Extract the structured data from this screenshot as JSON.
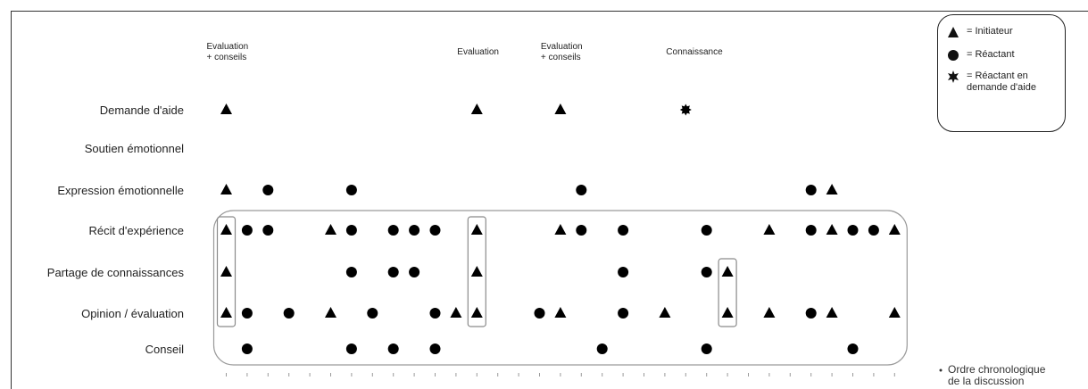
{
  "chart_data": {
    "type": "scatter",
    "x_axis": {
      "label_lines": [
        "Ordre chronologique",
        "de la discussion"
      ]
    },
    "categories": [
      "Demande d'aide",
      "Soutien émotionnel",
      "Expression émotionnelle",
      "Récit d'expérience",
      "Partage de connaissances",
      "Opinion / évaluation",
      "Conseil"
    ],
    "top_labels": [
      {
        "x": 1,
        "lines": [
          "Evaluation",
          "+ conseils"
        ]
      },
      {
        "x": 13,
        "lines": [
          "Evaluation"
        ]
      },
      {
        "x": 17,
        "lines": [
          "Evaluation",
          "+ conseils"
        ]
      },
      {
        "x": 23,
        "lines": [
          "Connaissance"
        ]
      }
    ],
    "legend": [
      {
        "symbol": "triangle",
        "label": "= Initiateur"
      },
      {
        "symbol": "circle",
        "label": "= Réactant"
      },
      {
        "symbol": "star",
        "label": "= Réactant en demande d'aide"
      }
    ],
    "points": [
      {
        "x": 1,
        "row": 0,
        "symbol": "triangle"
      },
      {
        "x": 13,
        "row": 0,
        "symbol": "triangle"
      },
      {
        "x": 17,
        "row": 0,
        "symbol": "triangle"
      },
      {
        "x": 23,
        "row": 0,
        "symbol": "star"
      },
      {
        "x": 1,
        "row": 2,
        "symbol": "triangle"
      },
      {
        "x": 3,
        "row": 2,
        "symbol": "circle"
      },
      {
        "x": 7,
        "row": 2,
        "symbol": "circle"
      },
      {
        "x": 18,
        "row": 2,
        "symbol": "circle"
      },
      {
        "x": 29,
        "row": 2,
        "symbol": "circle"
      },
      {
        "x": 30,
        "row": 2,
        "symbol": "triangle"
      },
      {
        "x": 1,
        "row": 3,
        "symbol": "triangle"
      },
      {
        "x": 2,
        "row": 3,
        "symbol": "circle"
      },
      {
        "x": 3,
        "row": 3,
        "symbol": "circle"
      },
      {
        "x": 6,
        "row": 3,
        "symbol": "triangle"
      },
      {
        "x": 7,
        "row": 3,
        "symbol": "circle"
      },
      {
        "x": 9,
        "row": 3,
        "symbol": "circle"
      },
      {
        "x": 10,
        "row": 3,
        "symbol": "circle"
      },
      {
        "x": 11,
        "row": 3,
        "symbol": "circle"
      },
      {
        "x": 13,
        "row": 3,
        "symbol": "triangle"
      },
      {
        "x": 17,
        "row": 3,
        "symbol": "triangle"
      },
      {
        "x": 18,
        "row": 3,
        "symbol": "circle"
      },
      {
        "x": 20,
        "row": 3,
        "symbol": "circle"
      },
      {
        "x": 24,
        "row": 3,
        "symbol": "circle"
      },
      {
        "x": 27,
        "row": 3,
        "symbol": "triangle"
      },
      {
        "x": 29,
        "row": 3,
        "symbol": "circle"
      },
      {
        "x": 30,
        "row": 3,
        "symbol": "triangle"
      },
      {
        "x": 31,
        "row": 3,
        "symbol": "circle"
      },
      {
        "x": 32,
        "row": 3,
        "symbol": "circle"
      },
      {
        "x": 33,
        "row": 3,
        "symbol": "triangle"
      },
      {
        "x": 1,
        "row": 4,
        "symbol": "triangle"
      },
      {
        "x": 7,
        "row": 4,
        "symbol": "circle"
      },
      {
        "x": 9,
        "row": 4,
        "symbol": "circle"
      },
      {
        "x": 10,
        "row": 4,
        "symbol": "circle"
      },
      {
        "x": 13,
        "row": 4,
        "symbol": "triangle"
      },
      {
        "x": 20,
        "row": 4,
        "symbol": "circle"
      },
      {
        "x": 24,
        "row": 4,
        "symbol": "circle"
      },
      {
        "x": 25,
        "row": 4,
        "symbol": "triangle"
      },
      {
        "x": 1,
        "row": 5,
        "symbol": "triangle"
      },
      {
        "x": 2,
        "row": 5,
        "symbol": "circle"
      },
      {
        "x": 4,
        "row": 5,
        "symbol": "circle"
      },
      {
        "x": 6,
        "row": 5,
        "symbol": "triangle"
      },
      {
        "x": 8,
        "row": 5,
        "symbol": "circle"
      },
      {
        "x": 11,
        "row": 5,
        "symbol": "circle"
      },
      {
        "x": 12,
        "row": 5,
        "symbol": "triangle"
      },
      {
        "x": 13,
        "row": 5,
        "symbol": "triangle"
      },
      {
        "x": 16,
        "row": 5,
        "symbol": "circle"
      },
      {
        "x": 17,
        "row": 5,
        "symbol": "triangle"
      },
      {
        "x": 20,
        "row": 5,
        "symbol": "circle"
      },
      {
        "x": 22,
        "row": 5,
        "symbol": "triangle"
      },
      {
        "x": 25,
        "row": 5,
        "symbol": "triangle"
      },
      {
        "x": 27,
        "row": 5,
        "symbol": "triangle"
      },
      {
        "x": 29,
        "row": 5,
        "symbol": "circle"
      },
      {
        "x": 30,
        "row": 5,
        "symbol": "triangle"
      },
      {
        "x": 33,
        "row": 5,
        "symbol": "triangle"
      },
      {
        "x": 2,
        "row": 6,
        "symbol": "circle"
      },
      {
        "x": 7,
        "row": 6,
        "symbol": "circle"
      },
      {
        "x": 9,
        "row": 6,
        "symbol": "circle"
      },
      {
        "x": 11,
        "row": 6,
        "symbol": "circle"
      },
      {
        "x": 19,
        "row": 6,
        "symbol": "circle"
      },
      {
        "x": 24,
        "row": 6,
        "symbol": "circle"
      },
      {
        "x": 31,
        "row": 6,
        "symbol": "circle"
      }
    ],
    "highlight_boxes": [
      {
        "x": 1,
        "row_from": 3,
        "row_to": 5
      },
      {
        "x": 13,
        "row_from": 3,
        "row_to": 5
      },
      {
        "x": 25,
        "row_from": 4,
        "row_to": 5
      }
    ],
    "grouping_frame": {
      "row_from": 3,
      "row_to": 6,
      "x_from": 1,
      "x_to": 33
    },
    "x_range": [
      1,
      33
    ],
    "grid": false,
    "legend_position": "top-right"
  }
}
